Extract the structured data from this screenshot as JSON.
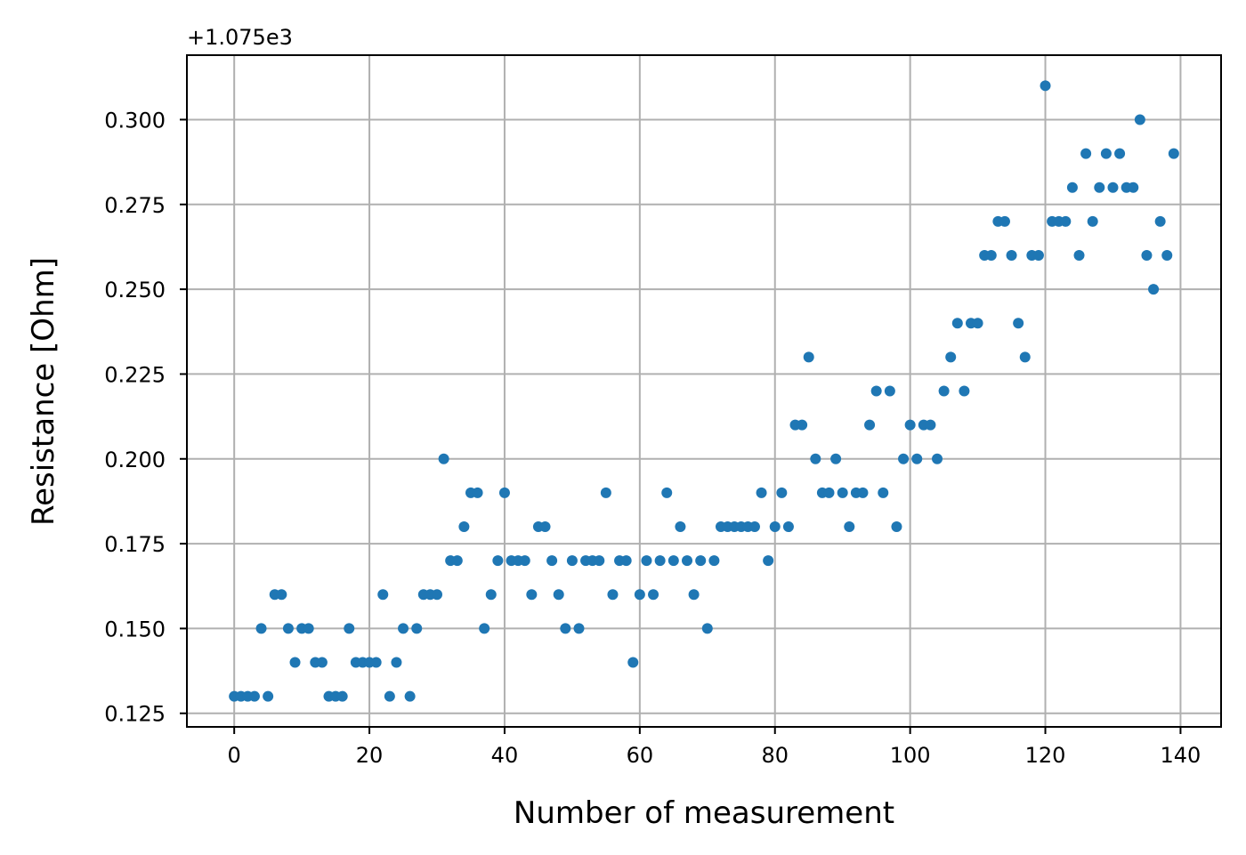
{
  "chart_data": {
    "type": "scatter",
    "title": "",
    "xlabel": "Number of measurement",
    "ylabel": "Resistance [Ohm]",
    "y_offset_label": "+1.075e3",
    "y_offset": 1075,
    "xlim": [
      -7,
      146
    ],
    "ylim": [
      0.121,
      0.319
    ],
    "x_ticks": [
      0,
      20,
      40,
      60,
      80,
      100,
      120,
      140
    ],
    "x_tick_labels": [
      "0",
      "20",
      "40",
      "60",
      "80",
      "100",
      "120",
      "140"
    ],
    "y_ticks": [
      0.125,
      0.15,
      0.175,
      0.2,
      0.225,
      0.25,
      0.275,
      0.3
    ],
    "y_tick_labels": [
      "0.125",
      "0.150",
      "0.175",
      "0.200",
      "0.225",
      "0.250",
      "0.275",
      "0.300"
    ],
    "grid": true,
    "marker_color": "#1f77b4",
    "grid_color": "#b0b0b0",
    "series": [
      {
        "x": [
          0,
          1,
          2,
          3,
          4,
          5,
          6,
          7,
          8,
          9,
          10,
          11,
          12,
          13,
          14,
          15,
          16,
          17,
          18,
          19,
          20,
          21,
          22,
          23,
          24,
          25,
          26,
          27,
          28,
          29,
          30,
          31,
          32,
          33,
          34,
          35,
          36,
          37,
          38,
          39,
          40,
          41,
          42,
          43,
          44,
          45,
          46,
          47,
          48,
          49,
          50,
          51,
          52,
          53,
          54,
          55,
          56,
          57,
          58,
          59,
          60,
          61,
          62,
          63,
          64,
          65,
          66,
          67,
          68,
          69,
          70,
          71,
          72,
          73,
          74,
          75,
          76,
          77,
          78,
          79,
          80,
          81,
          82,
          83,
          84,
          85,
          86,
          87,
          88,
          89,
          90,
          91,
          92,
          93,
          94,
          95,
          96,
          97,
          98,
          99,
          100,
          101,
          102,
          103,
          104,
          105,
          106,
          107,
          108,
          109,
          110,
          111,
          112,
          113,
          114,
          115,
          116,
          117,
          118,
          119,
          120,
          121,
          122,
          123,
          124,
          125,
          126,
          127,
          128,
          129,
          130,
          131,
          132,
          133,
          134,
          135,
          136,
          137,
          138,
          139
        ],
        "y": [
          0.13,
          0.13,
          0.13,
          0.13,
          0.15,
          0.13,
          0.16,
          0.16,
          0.15,
          0.14,
          0.15,
          0.15,
          0.14,
          0.14,
          0.13,
          0.13,
          0.13,
          0.15,
          0.14,
          0.14,
          0.14,
          0.14,
          0.16,
          0.13,
          0.14,
          0.15,
          0.13,
          0.15,
          0.16,
          0.16,
          0.16,
          0.2,
          0.17,
          0.17,
          0.18,
          0.19,
          0.19,
          0.15,
          0.16,
          0.17,
          0.19,
          0.17,
          0.17,
          0.17,
          0.16,
          0.18,
          0.18,
          0.17,
          0.16,
          0.15,
          0.17,
          0.15,
          0.17,
          0.17,
          0.17,
          0.19,
          0.16,
          0.17,
          0.17,
          0.14,
          0.16,
          0.17,
          0.16,
          0.17,
          0.19,
          0.17,
          0.18,
          0.17,
          0.16,
          0.17,
          0.15,
          0.17,
          0.18,
          0.18,
          0.18,
          0.18,
          0.18,
          0.18,
          0.19,
          0.17,
          0.18,
          0.19,
          0.18,
          0.21,
          0.21,
          0.23,
          0.2,
          0.19,
          0.19,
          0.2,
          0.19,
          0.18,
          0.19,
          0.19,
          0.21,
          0.22,
          0.19,
          0.22,
          0.18,
          0.2,
          0.21,
          0.2,
          0.21,
          0.21,
          0.2,
          0.22,
          0.23,
          0.24,
          0.22,
          0.24,
          0.24,
          0.26,
          0.26,
          0.27,
          0.27,
          0.26,
          0.24,
          0.23,
          0.26,
          0.26,
          0.31,
          0.27,
          0.27,
          0.27,
          0.28,
          0.26,
          0.29,
          0.27,
          0.28,
          0.29,
          0.28,
          0.29,
          0.28,
          0.28,
          0.3,
          0.26,
          0.25,
          0.27,
          0.26,
          0.29
        ]
      }
    ]
  }
}
